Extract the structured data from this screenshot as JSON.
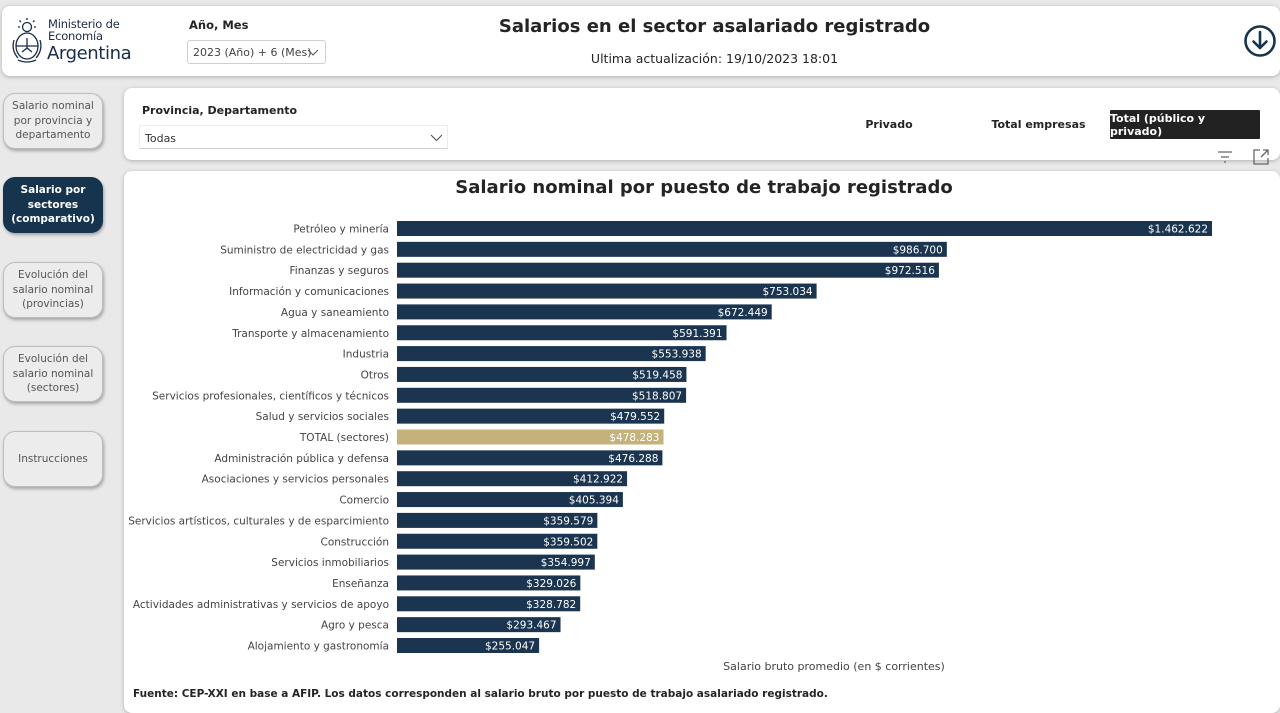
{
  "header": {
    "logo": {
      "line1": "Ministerio de",
      "line2": "Economía",
      "line3": "Argentina"
    },
    "period_label": "Año, Mes",
    "period_value": "2023 (Año) + 6 (Mes)",
    "title": "Salarios en el sector asalariado registrado",
    "updated": "Ultima actualización: 19/10/2023 18:01"
  },
  "nav": [
    "Salario nominal por provincia y departamento",
    "Salario por sectores (comparativo)",
    "Evolución del salario nominal (provincias)",
    "Evolución del salario nominal (sectores)",
    "Instrucciones"
  ],
  "filters": {
    "province_label": "Provincia, Departamento",
    "province_value": "Todas",
    "segments": [
      "Privado",
      "Total empresas",
      "Total (público y privado)"
    ],
    "active_segment": "Total (público y privado)"
  },
  "colors": {
    "bar": "#1b3550",
    "highlight": "#c4b27a",
    "active_nav": "#16344e"
  },
  "chart_data": {
    "type": "bar",
    "orientation": "horizontal",
    "title": "Salario nominal por puesto de trabajo registrado",
    "xlabel": "Salario bruto promedio (en $ corrientes)",
    "ylabel": "",
    "xlim": [
      0,
      1462622
    ],
    "grid": false,
    "highlight_category": "TOTAL (sectores)",
    "categories": [
      "Petróleo y minería",
      "Suministro de electricidad y gas",
      "Finanzas y seguros",
      "Información y comunicaciones",
      "Agua y saneamiento",
      "Transporte y almacenamiento",
      "Industria",
      "Otros",
      "Servicios profesionales, científicos y técnicos",
      "Salud y servicios sociales",
      "TOTAL (sectores)",
      "Administración pública y defensa",
      "Asociaciones y servicios personales",
      "Comercio",
      "Servicios artísticos, culturales y de esparcimiento",
      "Construcción",
      "Servicios inmobiliarios",
      "Enseñanza",
      "Actividades administrativas y servicios de apoyo",
      "Agro y pesca",
      "Alojamiento y gastronomía"
    ],
    "values": [
      1462622,
      986700,
      972516,
      753034,
      672449,
      591391,
      553938,
      519458,
      518807,
      479552,
      478283,
      476288,
      412922,
      405394,
      359579,
      359502,
      354997,
      329026,
      328782,
      293467,
      255047
    ],
    "labels": [
      "$1.462.622",
      "$986.700",
      "$972.516",
      "$753.034",
      "$672.449",
      "$591.391",
      "$553.938",
      "$519.458",
      "$518.807",
      "$479.552",
      "$478.283",
      "$476.288",
      "$412.922",
      "$405.394",
      "$359.579",
      "$359.502",
      "$354.997",
      "$329.026",
      "$328.782",
      "$293.467",
      "$255.047"
    ]
  },
  "footer": {
    "source": "Fuente: CEP-XXI en base a AFIP. Los datos corresponden al salario bruto por puesto de trabajo asalariado registrado."
  }
}
